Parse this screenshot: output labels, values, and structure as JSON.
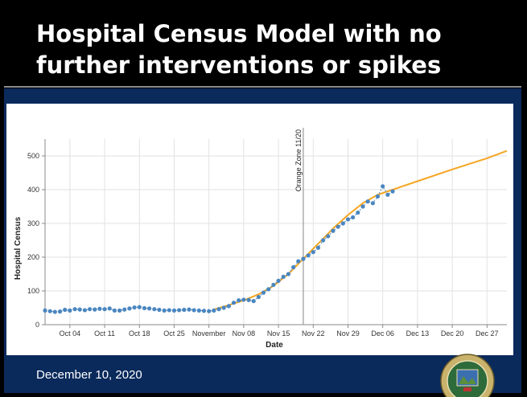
{
  "slide": {
    "title": "Hospital Census Model with no further interventions or spikes",
    "date": "December 10, 2020"
  },
  "chart_data": {
    "type": "line",
    "xlabel": "Date",
    "ylabel": "Hospital Census",
    "xlim": [
      "2020-09-29",
      "2020-12-31"
    ],
    "ylim": [
      0,
      550
    ],
    "x_ticks": [
      "Oct 04",
      "Oct 11",
      "Oct 18",
      "Oct 25",
      "November",
      "Nov 08",
      "Nov 15",
      "Nov 22",
      "Nov 29",
      "Dec 06",
      "Dec 13",
      "Dec 20",
      "Dec 27"
    ],
    "y_ticks": [
      0,
      100,
      200,
      300,
      400,
      500
    ],
    "grid": true,
    "annotation": {
      "label": "Orange Zone 11/20",
      "date": "2020-11-20"
    },
    "observed": {
      "color": "#4a86c0",
      "points": [
        [
          "2020-09-29",
          42
        ],
        [
          "2020-09-30",
          40
        ],
        [
          "2020-10-01",
          38
        ],
        [
          "2020-10-02",
          39
        ],
        [
          "2020-10-03",
          44
        ],
        [
          "2020-10-04",
          42
        ],
        [
          "2020-10-05",
          46
        ],
        [
          "2020-10-06",
          45
        ],
        [
          "2020-10-07",
          43
        ],
        [
          "2020-10-08",
          46
        ],
        [
          "2020-10-09",
          45
        ],
        [
          "2020-10-10",
          47
        ],
        [
          "2020-10-11",
          46
        ],
        [
          "2020-10-12",
          48
        ],
        [
          "2020-10-13",
          42
        ],
        [
          "2020-10-14",
          42
        ],
        [
          "2020-10-15",
          45
        ],
        [
          "2020-10-16",
          48
        ],
        [
          "2020-10-17",
          51
        ],
        [
          "2020-10-18",
          52
        ],
        [
          "2020-10-19",
          49
        ],
        [
          "2020-10-20",
          48
        ],
        [
          "2020-10-21",
          46
        ],
        [
          "2020-10-22",
          44
        ],
        [
          "2020-10-23",
          42
        ],
        [
          "2020-10-24",
          43
        ],
        [
          "2020-10-25",
          42
        ],
        [
          "2020-10-26",
          43
        ],
        [
          "2020-10-27",
          44
        ],
        [
          "2020-10-28",
          45
        ],
        [
          "2020-10-29",
          43
        ],
        [
          "2020-10-30",
          42
        ],
        [
          "2020-10-31",
          41
        ],
        [
          "2020-11-01",
          40
        ],
        [
          "2020-11-02",
          42
        ],
        [
          "2020-11-03",
          46
        ],
        [
          "2020-11-04",
          50
        ],
        [
          "2020-11-05",
          55
        ],
        [
          "2020-11-06",
          65
        ],
        [
          "2020-11-07",
          72
        ],
        [
          "2020-11-08",
          74
        ],
        [
          "2020-11-09",
          73
        ],
        [
          "2020-11-10",
          70
        ],
        [
          "2020-11-11",
          82
        ],
        [
          "2020-11-12",
          95
        ],
        [
          "2020-11-13",
          105
        ],
        [
          "2020-11-14",
          118
        ],
        [
          "2020-11-15",
          130
        ],
        [
          "2020-11-16",
          142
        ],
        [
          "2020-11-17",
          150
        ],
        [
          "2020-11-18",
          170
        ],
        [
          "2020-11-19",
          188
        ],
        [
          "2020-11-20",
          195
        ],
        [
          "2020-11-21",
          205
        ],
        [
          "2020-11-22",
          215
        ],
        [
          "2020-11-23",
          228
        ],
        [
          "2020-11-24",
          250
        ],
        [
          "2020-11-25",
          262
        ],
        [
          "2020-11-26",
          278
        ],
        [
          "2020-11-27",
          290
        ],
        [
          "2020-11-28",
          300
        ],
        [
          "2020-11-29",
          312
        ],
        [
          "2020-11-30",
          318
        ],
        [
          "2020-12-01",
          332
        ],
        [
          "2020-12-02",
          350
        ],
        [
          "2020-12-03",
          365
        ],
        [
          "2020-12-04",
          360
        ],
        [
          "2020-12-05",
          380
        ],
        [
          "2020-12-06",
          410
        ],
        [
          "2020-12-07",
          385
        ],
        [
          "2020-12-08",
          395
        ]
      ]
    },
    "model": {
      "color": "#f5a623",
      "points": [
        [
          "2020-11-02",
          45
        ],
        [
          "2020-11-05",
          58
        ],
        [
          "2020-11-08",
          72
        ],
        [
          "2020-11-11",
          90
        ],
        [
          "2020-11-14",
          115
        ],
        [
          "2020-11-17",
          150
        ],
        [
          "2020-11-20",
          195
        ],
        [
          "2020-11-23",
          240
        ],
        [
          "2020-11-26",
          285
        ],
        [
          "2020-11-29",
          325
        ],
        [
          "2020-12-02",
          360
        ],
        [
          "2020-12-05",
          385
        ],
        [
          "2020-12-08",
          400
        ],
        [
          "2020-12-13",
          425
        ],
        [
          "2020-12-20",
          460
        ],
        [
          "2020-12-27",
          493
        ],
        [
          "2020-12-31",
          515
        ]
      ]
    }
  },
  "colors": {
    "slide_background": "#000000",
    "body_background": "#0a2a5c",
    "annotation_line": "#999999"
  },
  "seal": {
    "icon": "seal-icon"
  }
}
